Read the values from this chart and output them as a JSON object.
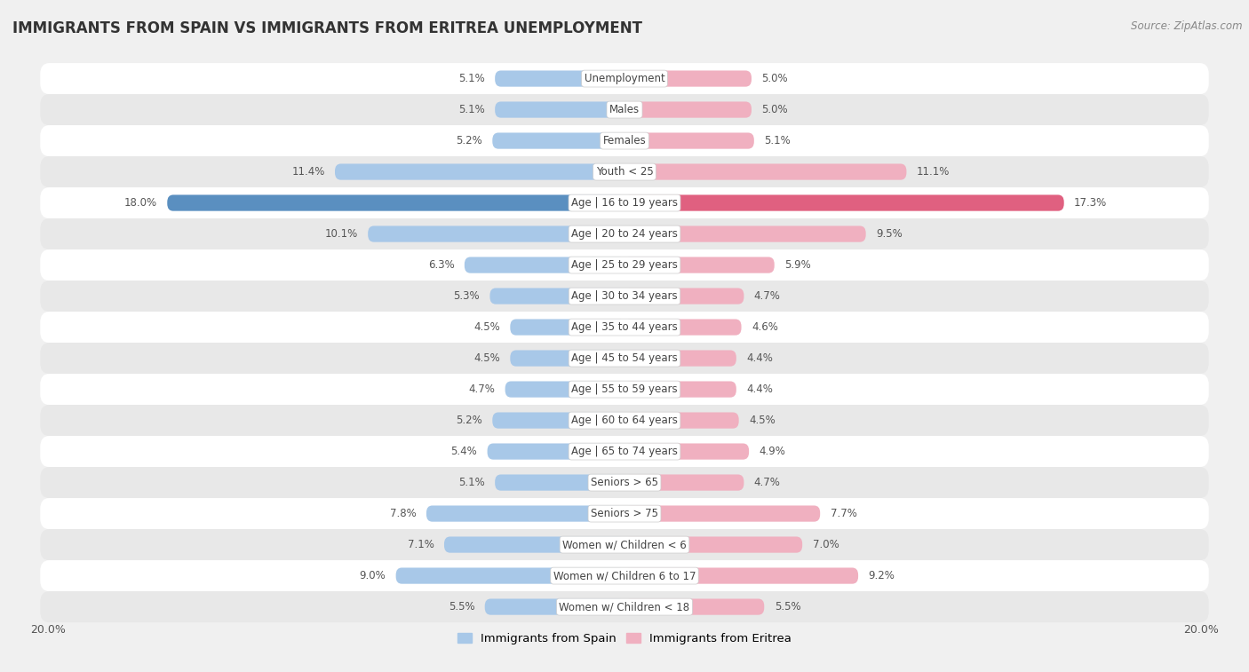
{
  "title": "IMMIGRANTS FROM SPAIN VS IMMIGRANTS FROM ERITREA UNEMPLOYMENT",
  "source": "Source: ZipAtlas.com",
  "categories": [
    "Unemployment",
    "Males",
    "Females",
    "Youth < 25",
    "Age | 16 to 19 years",
    "Age | 20 to 24 years",
    "Age | 25 to 29 years",
    "Age | 30 to 34 years",
    "Age | 35 to 44 years",
    "Age | 45 to 54 years",
    "Age | 55 to 59 years",
    "Age | 60 to 64 years",
    "Age | 65 to 74 years",
    "Seniors > 65",
    "Seniors > 75",
    "Women w/ Children < 6",
    "Women w/ Children 6 to 17",
    "Women w/ Children < 18"
  ],
  "spain_values": [
    5.1,
    5.1,
    5.2,
    11.4,
    18.0,
    10.1,
    6.3,
    5.3,
    4.5,
    4.5,
    4.7,
    5.2,
    5.4,
    5.1,
    7.8,
    7.1,
    9.0,
    5.5
  ],
  "eritrea_values": [
    5.0,
    5.0,
    5.1,
    11.1,
    17.3,
    9.5,
    5.9,
    4.7,
    4.6,
    4.4,
    4.4,
    4.5,
    4.9,
    4.7,
    7.7,
    7.0,
    9.2,
    5.5
  ],
  "spain_color": "#a8c8e8",
  "eritrea_color": "#f0b0c0",
  "spain_highlight_color": "#5a8fc0",
  "eritrea_highlight_color": "#e06080",
  "highlight_index": 4,
  "bg_color": "#f0f0f0",
  "row_color_even": "#ffffff",
  "row_color_odd": "#e8e8e8",
  "axis_limit": 20.0,
  "label_fontsize": 8.5,
  "title_fontsize": 12,
  "legend_spain": "Immigrants from Spain",
  "legend_eritrea": "Immigrants from Eritrea"
}
